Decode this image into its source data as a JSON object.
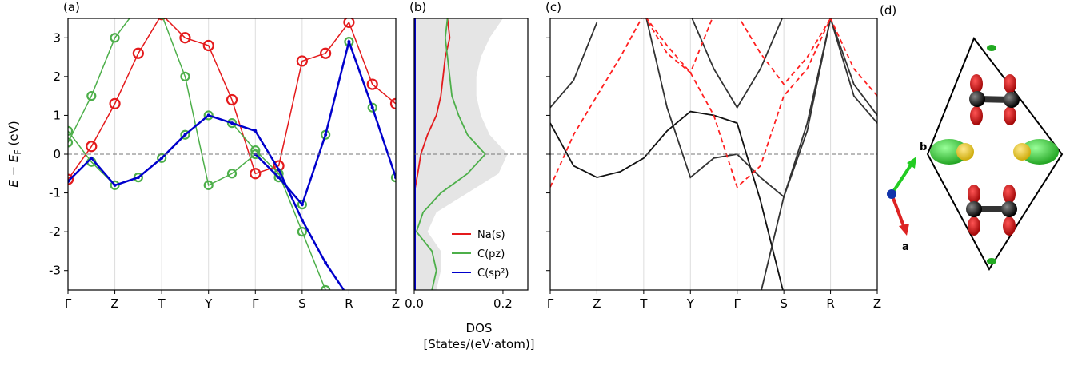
{
  "chart_data": [
    {
      "type": "line",
      "title": "(a)",
      "ylabel": {
        "main": "E − E",
        "sub": "F",
        "unit": " (eV)"
      },
      "x": [
        0,
        0.5,
        1,
        1.5,
        2,
        2.5,
        3,
        3.5,
        4,
        4.5,
        5,
        5.5,
        6,
        6.5,
        7
      ],
      "xlim": [
        0,
        7
      ],
      "ylim": [
        -3.5,
        3.5
      ],
      "xticks": [
        {
          "value": 0,
          "label": "Γ"
        },
        {
          "value": 1,
          "label": "Z"
        },
        {
          "value": 2,
          "label": "T"
        },
        {
          "value": 3,
          "label": "Y"
        },
        {
          "value": 4,
          "label": "Γ"
        },
        {
          "value": 5,
          "label": "S"
        },
        {
          "value": 6,
          "label": "R"
        },
        {
          "value": 7,
          "label": "Z"
        }
      ],
      "yticks": [
        -3,
        -2,
        -1,
        0,
        1,
        2,
        3
      ],
      "grid": true,
      "zero_line": true,
      "ytick_labels": true,
      "series": [
        {
          "color": "#e41a1c",
          "marker": "ring-large",
          "values": [
            -0.65,
            0.2,
            1.3,
            2.6,
            3.6,
            null,
            null,
            null,
            null,
            null,
            null,
            null,
            null,
            null,
            null
          ]
        },
        {
          "color": "#e41a1c",
          "marker": "ring-large",
          "values": [
            null,
            null,
            null,
            null,
            3.6,
            3.0,
            2.8,
            1.4,
            -0.5,
            -0.3,
            2.4,
            2.6,
            3.4,
            1.8,
            1.3
          ]
        },
        {
          "color": "#4daf4a",
          "marker": "ring",
          "values": [
            0.6,
            -0.2,
            -0.8,
            -0.6,
            -0.1,
            0.5,
            1.0,
            0.8,
            0.1,
            -0.5,
            -2.0,
            -3.5,
            null,
            null,
            null
          ]
        },
        {
          "color": "#4daf4a",
          "marker": "ring",
          "values": [
            0.3,
            1.5,
            3.0,
            3.8,
            null,
            null,
            null,
            null,
            null,
            null,
            null,
            null,
            null,
            null,
            null
          ]
        },
        {
          "color": "#4daf4a",
          "marker": "ring",
          "values": [
            null,
            null,
            null,
            null,
            3.6,
            2.0,
            -0.8,
            -0.5,
            0.0,
            -0.6,
            -1.3,
            0.5,
            2.9,
            1.2,
            -0.6
          ]
        },
        {
          "color": "#0000cc",
          "marker": "dot",
          "values": [
            -0.7,
            -0.1,
            -0.8,
            -0.6,
            -0.1,
            0.5,
            1.0,
            0.8,
            0.6,
            -0.4,
            -1.7,
            -2.8,
            -3.7,
            null,
            null
          ]
        },
        {
          "color": "#0000cc",
          "marker": "dot",
          "values": [
            null,
            null,
            null,
            null,
            null,
            null,
            null,
            null,
            0.0,
            -0.6,
            -1.3,
            0.5,
            2.9,
            1.2,
            -0.6
          ]
        }
      ]
    },
    {
      "type": "line",
      "orientation": "horizontal",
      "title": "(b)",
      "xlabel": [
        "DOS",
        "[States/(eV·atom)]"
      ],
      "y": [
        -3.5,
        -3,
        -2.5,
        -2,
        -1.5,
        -1,
        -0.5,
        0,
        0.5,
        1,
        1.5,
        2,
        2.5,
        3,
        3.5
      ],
      "xlim": [
        0,
        0.256
      ],
      "ylim": [
        -3.5,
        3.5
      ],
      "xticks": [
        {
          "value": 0,
          "label": "0.0"
        },
        0.2
      ],
      "zero_line": true,
      "legend": "lower right",
      "series": [
        {
          "color": "#e5e5e5",
          "fill": true,
          "values": [
            0.05,
            0.06,
            0.06,
            0.03,
            0.05,
            0.12,
            0.19,
            0.21,
            0.17,
            0.15,
            0.14,
            0.14,
            0.15,
            0.17,
            0.2
          ]
        },
        {
          "name": "Na(s)",
          "color": "#e41a1c",
          "values": [
            0,
            0,
            0,
            0,
            0,
            0,
            0.008,
            0.015,
            0.03,
            0.05,
            0.06,
            0.065,
            0.07,
            0.08,
            0.075
          ]
        },
        {
          "name": "C(pz)",
          "color": "#4daf4a",
          "values": [
            0.04,
            0.05,
            0.04,
            0.005,
            0.02,
            0.06,
            0.12,
            0.16,
            0.12,
            0.1,
            0.085,
            0.08,
            0.075,
            0.07,
            0.075
          ]
        },
        {
          "name": "C(sp²)",
          "color": "#0000cc",
          "values": [
            0.002,
            0.002,
            0.002,
            0.002,
            0.002,
            0.002,
            0.002,
            0.002,
            0.002,
            0.002,
            0.002,
            0.002,
            0.002,
            0.002,
            0.002
          ]
        }
      ]
    },
    {
      "type": "line",
      "title": "(c)",
      "x": [
        0,
        0.5,
        1,
        1.5,
        2,
        2.5,
        3,
        3.5,
        4,
        4.5,
        5,
        5.5,
        6,
        6.5,
        7
      ],
      "xlim": [
        0,
        7
      ],
      "ylim": [
        -3.5,
        3.5
      ],
      "xticks": [
        {
          "value": 0,
          "label": "Γ"
        },
        {
          "value": 1,
          "label": "Z"
        },
        {
          "value": 2,
          "label": "T"
        },
        {
          "value": 3,
          "label": "Y"
        },
        {
          "value": 4,
          "label": "Γ"
        },
        {
          "value": 5,
          "label": "S"
        },
        {
          "value": 6,
          "label": "R"
        },
        {
          "value": 7,
          "label": "Z"
        }
      ],
      "yticks": [
        -3,
        -2,
        -1,
        0,
        1,
        2,
        3
      ],
      "grid": true,
      "zero_line": true,
      "ytick_labels": false,
      "series": [
        {
          "color": "#111111",
          "values": [
            0.8,
            -0.3,
            -0.6,
            -0.45,
            -0.1,
            0.6,
            1.1,
            1.0,
            0.8,
            -1.2,
            -3.6,
            null,
            null,
            null,
            null
          ]
        },
        {
          "color": "#333333",
          "values": [
            1.2,
            1.9,
            3.4,
            null,
            null,
            null,
            null,
            null,
            null,
            null,
            null,
            null,
            null,
            null,
            null
          ]
        },
        {
          "color": "#333333",
          "values": [
            null,
            null,
            null,
            null,
            3.8,
            1.2,
            -0.6,
            -0.1,
            0.0,
            -0.6,
            -1.1,
            0.8,
            3.5,
            1.8,
            1.0
          ]
        },
        {
          "color": "#333333",
          "values": [
            null,
            null,
            null,
            null,
            null,
            null,
            3.6,
            2.2,
            1.2,
            2.2,
            3.6,
            null,
            null,
            null,
            null
          ]
        },
        {
          "color": "#333333",
          "values": [
            null,
            null,
            null,
            null,
            null,
            null,
            null,
            null,
            null,
            -3.6,
            -1.1,
            0.6,
            3.5,
            1.5,
            0.8
          ]
        },
        {
          "color": "#ff2020",
          "dash": true,
          "values": [
            -0.85,
            0.5,
            1.5,
            2.5,
            3.6,
            2.8,
            2.1,
            1.0,
            -0.85,
            -0.3,
            1.5,
            2.2,
            3.5,
            2.2,
            1.5
          ]
        },
        {
          "color": "#ff2020",
          "dash": true,
          "values": [
            null,
            null,
            null,
            null,
            3.6,
            2.6,
            2.1,
            3.6,
            null,
            null,
            null,
            null,
            null,
            null,
            null
          ]
        },
        {
          "color": "#ff2020",
          "dash": true,
          "values": [
            null,
            null,
            null,
            null,
            null,
            null,
            null,
            null,
            3.6,
            2.6,
            1.8,
            2.5,
            3.5,
            null,
            null
          ]
        }
      ]
    }
  ],
  "structure": {
    "title": "(d)",
    "axis_b": "b",
    "axis_a": "a"
  }
}
